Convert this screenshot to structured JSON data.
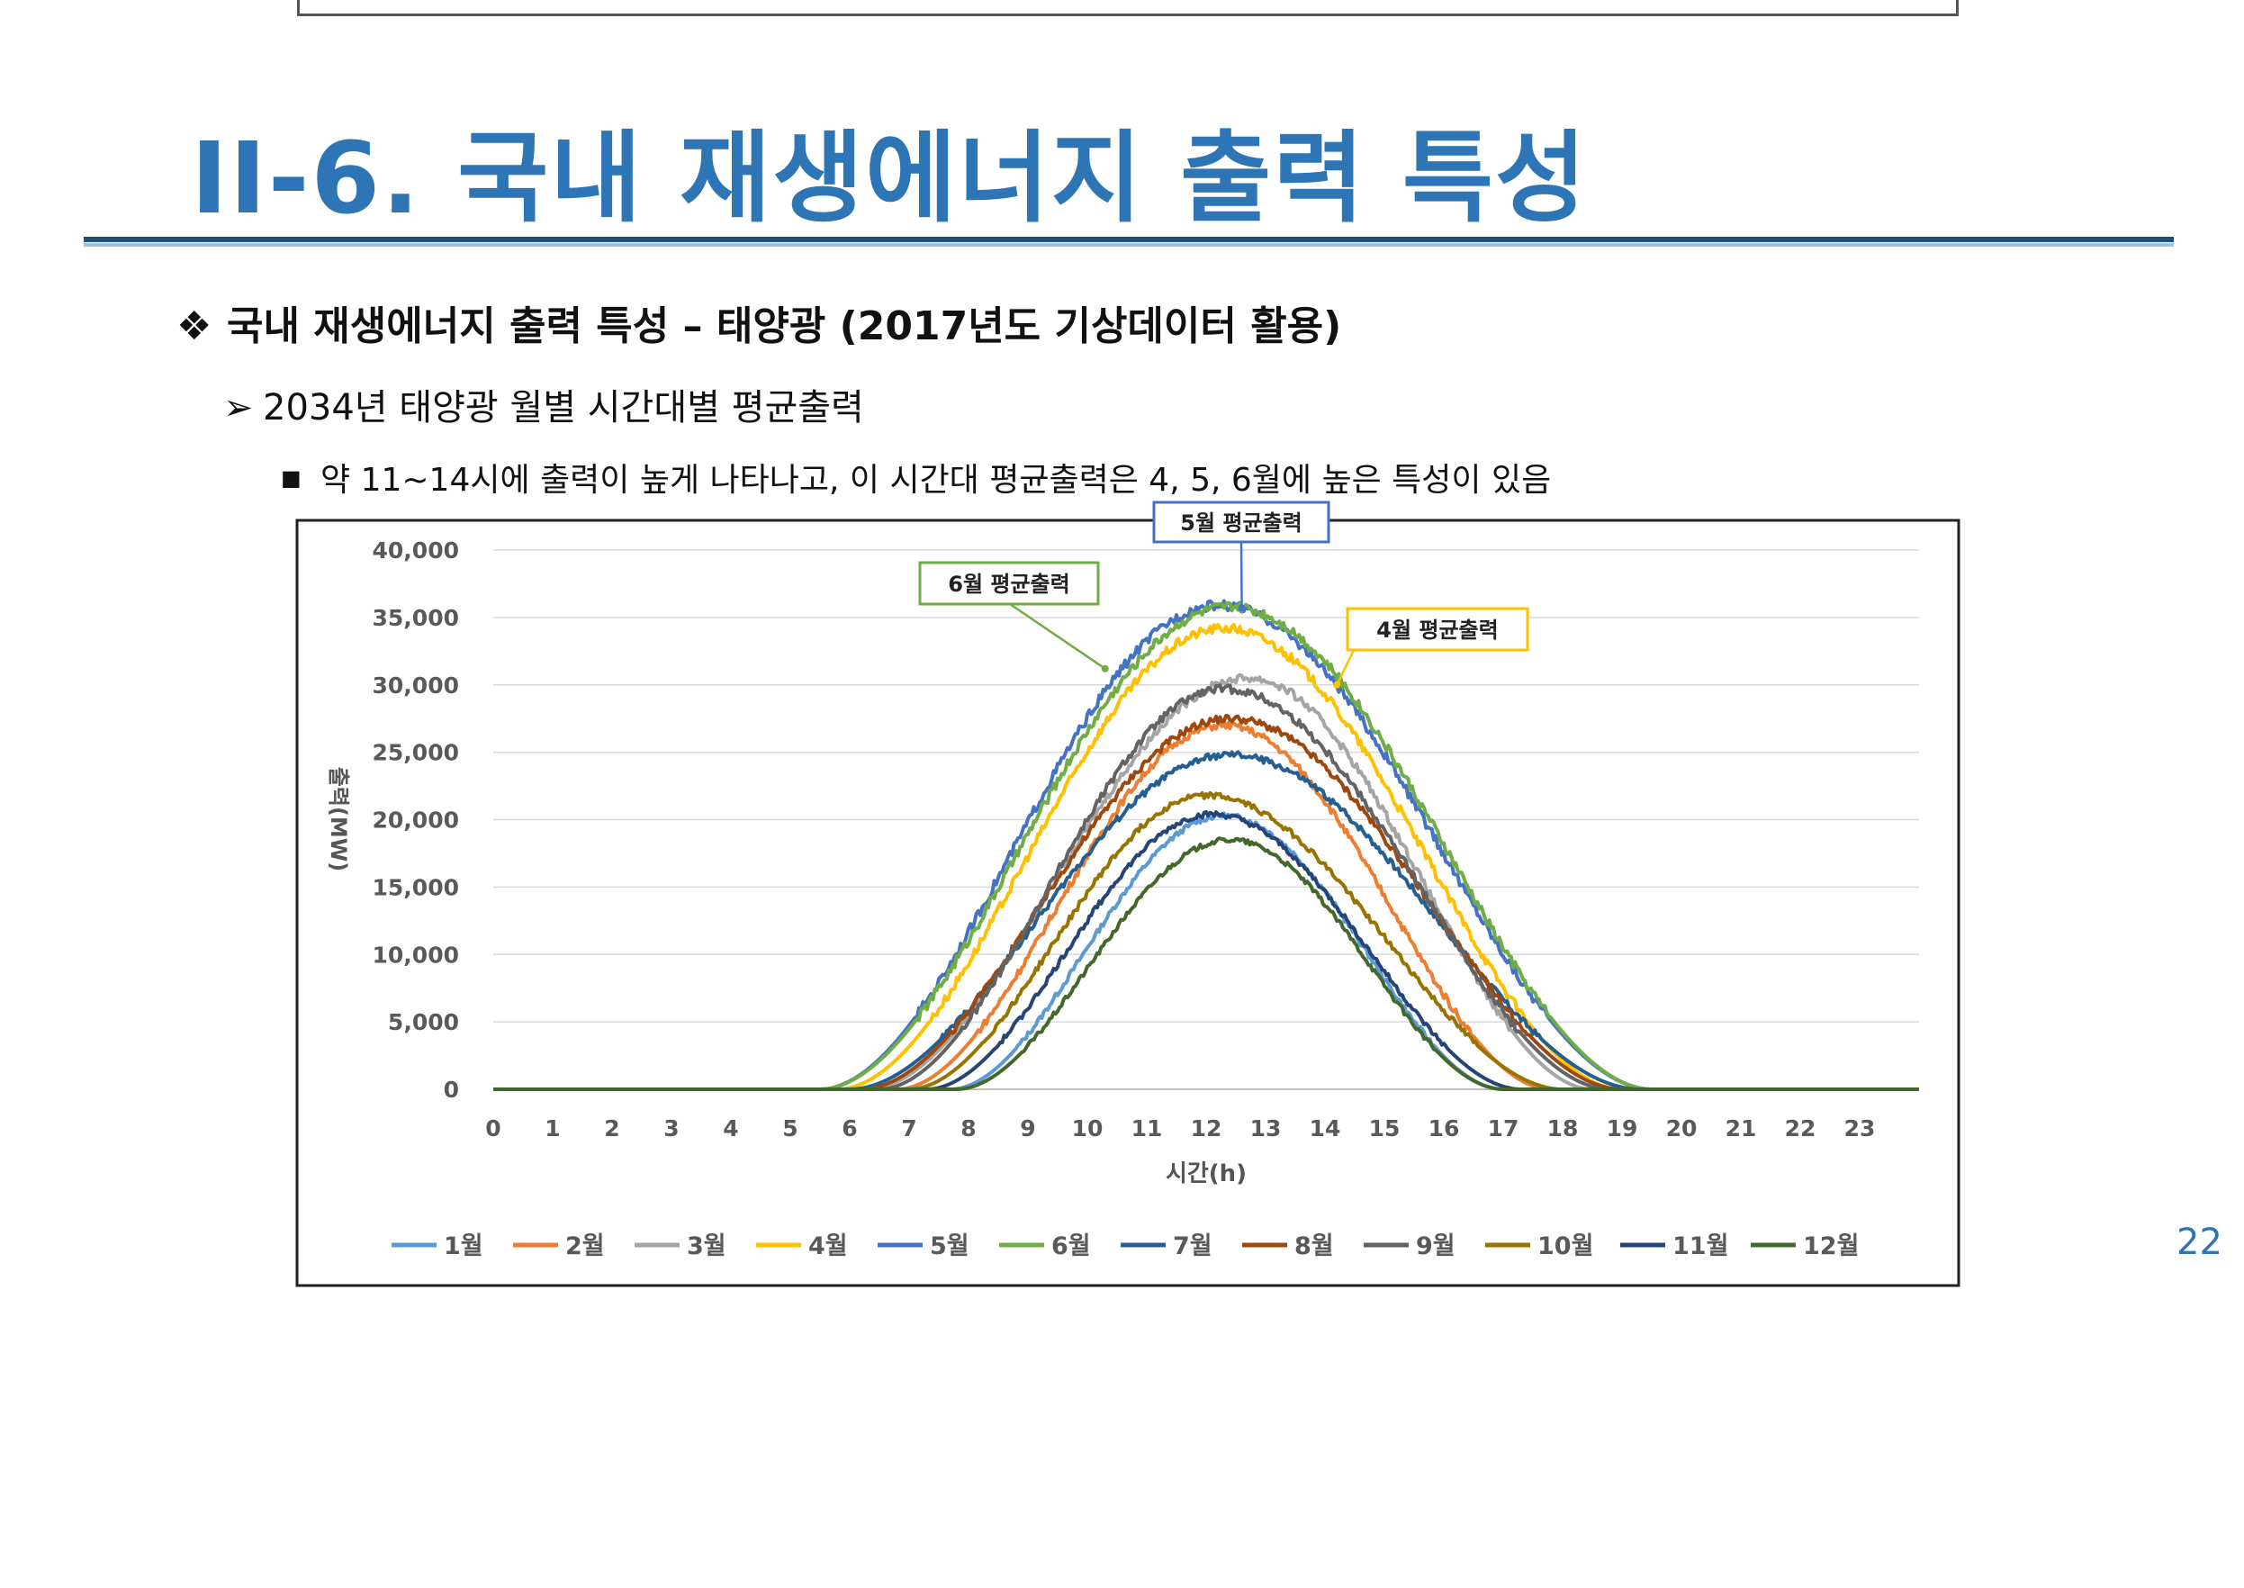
{
  "slide": {
    "title": "II-6.  국내 재생에너지 출력 특성",
    "bullet1_glyph": "❖",
    "bullet1": "국내 재생에너지 출력 특성 – 태양광 (2017년도 기상데이터 활용)",
    "bullet2_glyph": "➢",
    "bullet2": "2034년 태양광 월별 시간대별 평균출력",
    "bullet3_glyph": "■",
    "bullet3": "약 11~14시에 출력이 높게 나타나고, 이 시간대 평균출력은 4, 5, 6월에 높은 특성이 있음",
    "page_number": "22"
  },
  "chart_data": {
    "type": "line",
    "title": "",
    "xlabel": "시간(h)",
    "ylabel": "출력(MW)",
    "ylim": [
      0,
      40000
    ],
    "yticks": [
      0,
      5000,
      10000,
      15000,
      20000,
      25000,
      30000,
      35000,
      40000
    ],
    "ytick_labels": [
      "0",
      "5,000",
      "10,000",
      "15,000",
      "20,000",
      "25,000",
      "30,000",
      "35,000",
      "40,000"
    ],
    "xlim": [
      0,
      24
    ],
    "xtick_labels": [
      "0",
      "1",
      "2",
      "3",
      "4",
      "5",
      "6",
      "7",
      "8",
      "9",
      "10",
      "11",
      "12",
      "13",
      "14",
      "15",
      "16",
      "17",
      "18",
      "19",
      "20",
      "21",
      "22",
      "23"
    ],
    "grid": true,
    "legend_position": "bottom",
    "series": [
      {
        "name": "1월",
        "color": "#5B9BD5",
        "start": 7.7,
        "end": 17.0,
        "peak_hour": 12.3,
        "peak": 20300
      },
      {
        "name": "2월",
        "color": "#ED7D31",
        "start": 6.8,
        "end": 17.8,
        "peak_hour": 12.3,
        "peak": 27000
      },
      {
        "name": "3월",
        "color": "#A5A5A5",
        "start": 6.3,
        "end": 18.5,
        "peak_hour": 12.7,
        "peak": 30500
      },
      {
        "name": "4월",
        "color": "#FFC000",
        "start": 5.8,
        "end": 19.0,
        "peak_hour": 12.3,
        "peak": 34200
      },
      {
        "name": "5월",
        "color": "#4472C4",
        "start": 5.5,
        "end": 19.5,
        "peak_hour": 12.2,
        "peak": 35900
      },
      {
        "name": "6월",
        "color": "#70AD47",
        "start": 5.5,
        "end": 19.5,
        "peak_hour": 12.4,
        "peak": 35800
      },
      {
        "name": "7월",
        "color": "#255E91",
        "start": 6.0,
        "end": 19.3,
        "peak_hour": 12.4,
        "peak": 24800
      },
      {
        "name": "8월",
        "color": "#9E480E",
        "start": 6.2,
        "end": 19.0,
        "peak_hour": 12.4,
        "peak": 27500
      },
      {
        "name": "9월",
        "color": "#636363",
        "start": 6.5,
        "end": 18.8,
        "peak_hour": 12.3,
        "peak": 29700
      },
      {
        "name": "10월",
        "color": "#997300",
        "start": 7.0,
        "end": 18.0,
        "peak_hour": 12.0,
        "peak": 21800
      },
      {
        "name": "11월",
        "color": "#264478",
        "start": 7.3,
        "end": 17.3,
        "peak_hour": 12.1,
        "peak": 20400
      },
      {
        "name": "12월",
        "color": "#43682B",
        "start": 7.8,
        "end": 17.0,
        "peak_hour": 12.4,
        "peak": 18500
      }
    ],
    "annotations": [
      {
        "text": "5월 평균출력",
        "border_color": "#4472C4",
        "target_hour": 12.6,
        "target_value": 35700
      },
      {
        "text": "6월 평균출력",
        "border_color": "#70AD47",
        "target_hour": 10.3,
        "target_value": 31200
      },
      {
        "text": "4월 평균출력",
        "border_color": "#FFC000",
        "target_hour": 14.2,
        "target_value": 30000
      }
    ]
  }
}
